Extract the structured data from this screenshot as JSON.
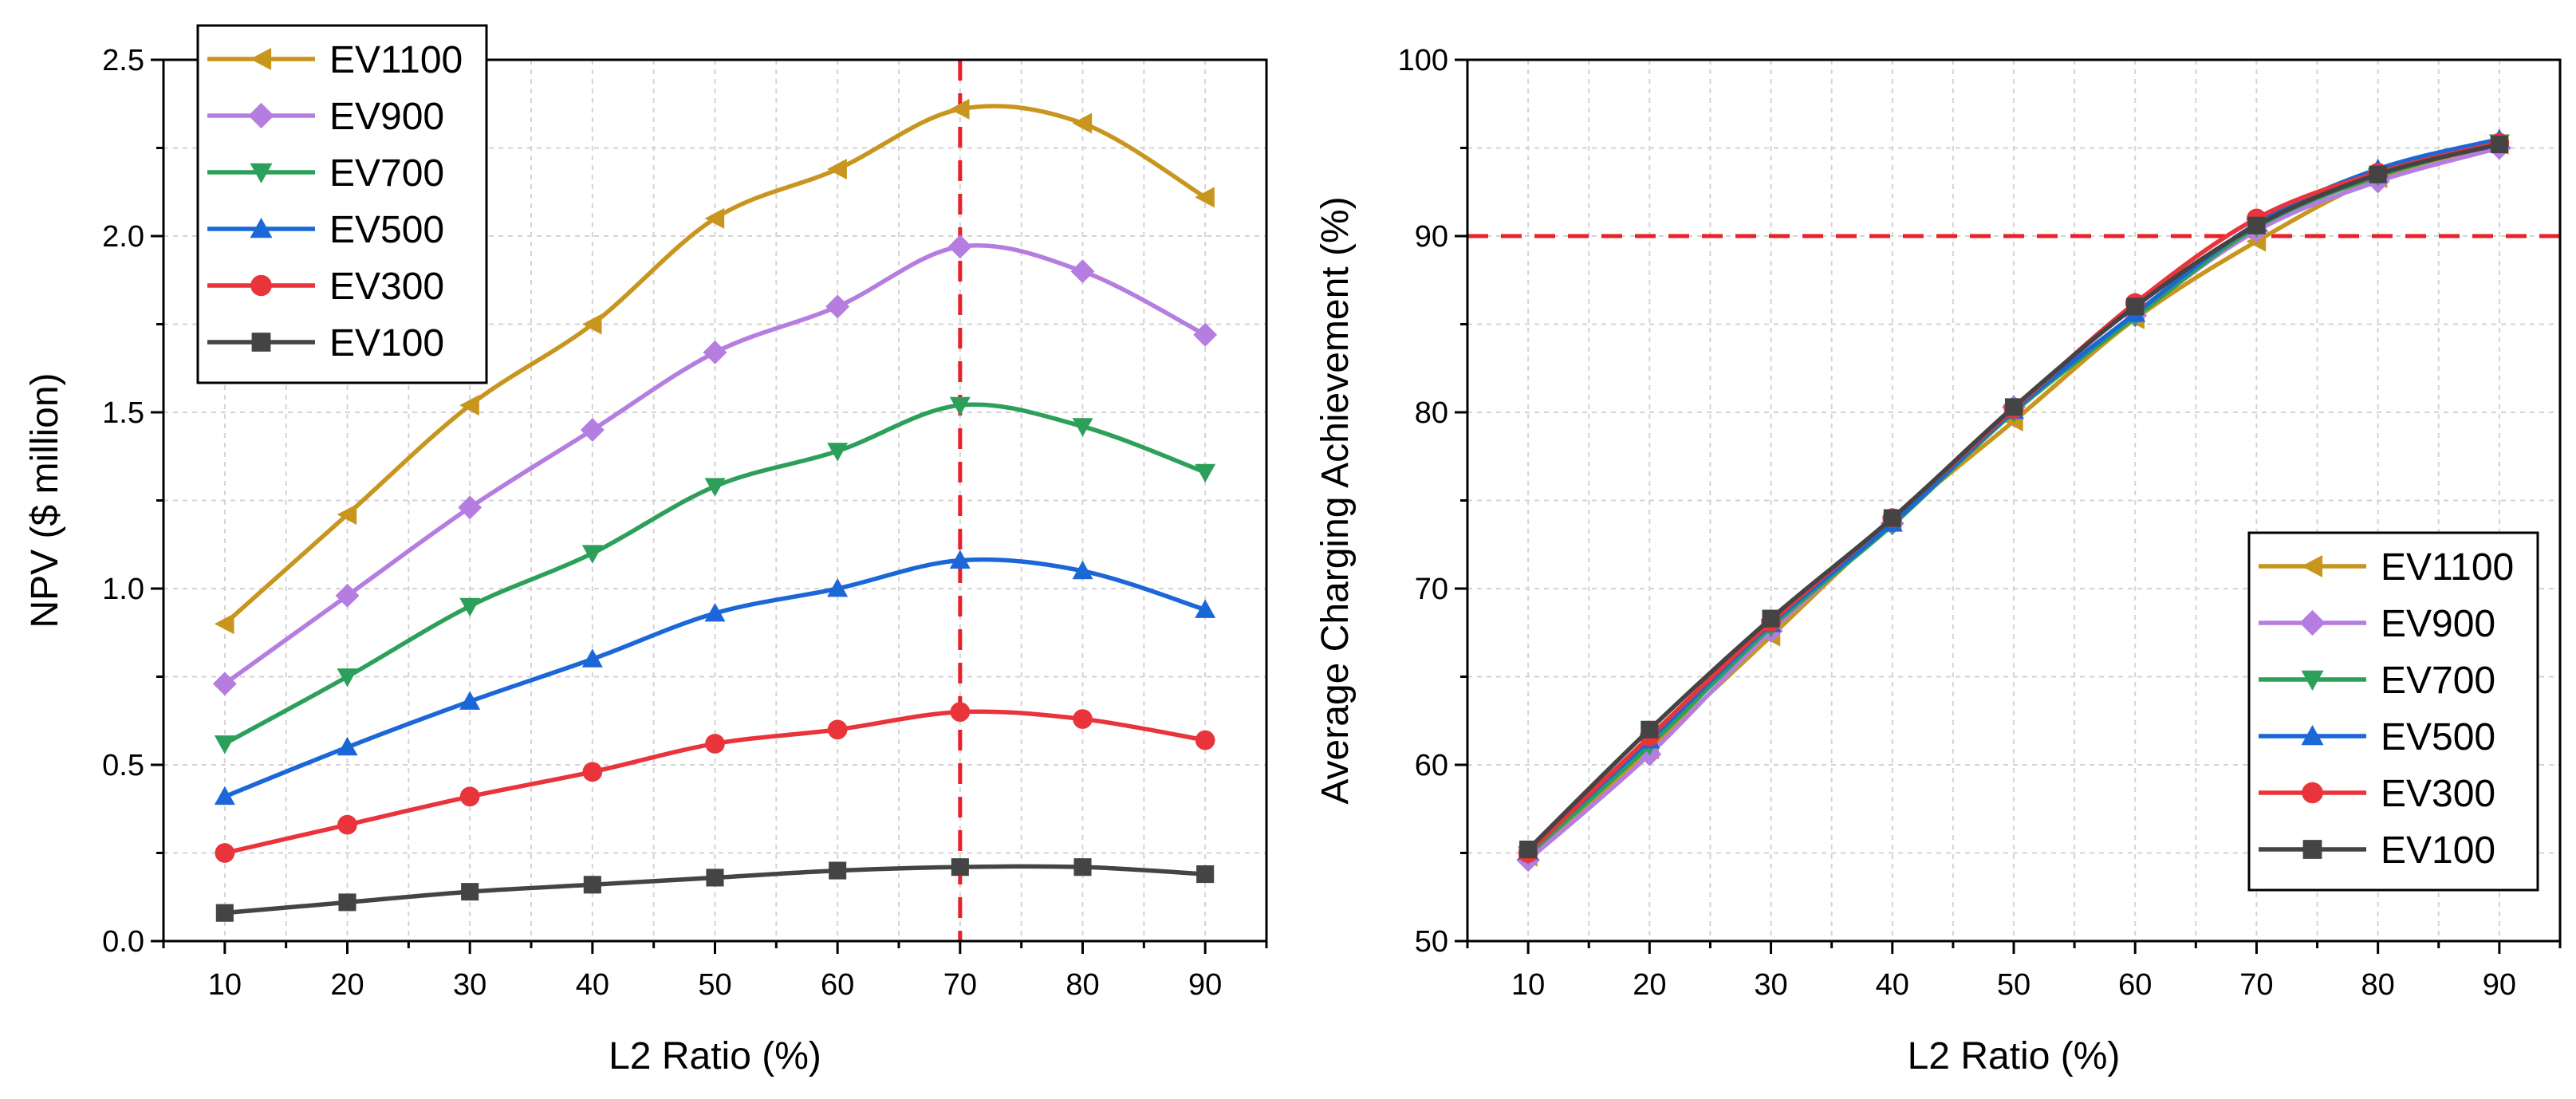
{
  "chart_data": [
    {
      "type": "line",
      "title": "",
      "xlabel": "L2 Ratio (%)",
      "ylabel": "NPV ($ million)",
      "x": [
        10,
        20,
        30,
        40,
        50,
        60,
        70,
        80,
        90
      ],
      "xlim": [
        5,
        95
      ],
      "ylim": [
        0.0,
        2.5
      ],
      "xticks": [
        10,
        20,
        30,
        40,
        50,
        60,
        70,
        80,
        90
      ],
      "yticks": [
        0.0,
        0.5,
        1.0,
        1.5,
        2.0,
        2.5
      ],
      "ytick_labels": [
        "0.0",
        "0.5",
        "1.0",
        "1.5",
        "2.0",
        "2.5"
      ],
      "grid": true,
      "legend_position": "top-left",
      "reference_line": {
        "orientation": "vertical",
        "value": 70,
        "color": "#e8202a",
        "style": "dashed"
      },
      "series": [
        {
          "name": "EV1100",
          "color": "#c8961e",
          "marker": "triangle-left",
          "values": [
            0.9,
            1.21,
            1.52,
            1.75,
            2.05,
            2.19,
            2.36,
            2.32,
            2.11
          ]
        },
        {
          "name": "EV900",
          "color": "#b57de0",
          "marker": "diamond",
          "values": [
            0.73,
            0.98,
            1.23,
            1.45,
            1.67,
            1.8,
            1.97,
            1.9,
            1.72
          ]
        },
        {
          "name": "EV700",
          "color": "#2ca05a",
          "marker": "triangle-down",
          "values": [
            0.56,
            0.75,
            0.95,
            1.1,
            1.29,
            1.39,
            1.52,
            1.46,
            1.33
          ]
        },
        {
          "name": "EV500",
          "color": "#1c67d8",
          "marker": "triangle-up",
          "values": [
            0.41,
            0.55,
            0.68,
            0.8,
            0.93,
            1.0,
            1.08,
            1.05,
            0.94
          ]
        },
        {
          "name": "EV300",
          "color": "#e8343a",
          "marker": "circle",
          "values": [
            0.25,
            0.33,
            0.41,
            0.48,
            0.56,
            0.6,
            0.65,
            0.63,
            0.57
          ]
        },
        {
          "name": "EV100",
          "color": "#444444",
          "marker": "square",
          "values": [
            0.08,
            0.11,
            0.14,
            0.16,
            0.18,
            0.2,
            0.21,
            0.21,
            0.19
          ]
        }
      ]
    },
    {
      "type": "line",
      "title": "",
      "xlabel": "L2 Ratio (%)",
      "ylabel": "Average Charging Achievement (%)",
      "x": [
        10,
        20,
        30,
        40,
        50,
        60,
        70,
        80,
        90
      ],
      "xlim": [
        5,
        95
      ],
      "ylim": [
        50,
        100
      ],
      "xticks": [
        10,
        20,
        30,
        40,
        50,
        60,
        70,
        80,
        90
      ],
      "yticks": [
        50,
        60,
        70,
        80,
        90,
        100
      ],
      "ytick_labels": [
        "50",
        "60",
        "70",
        "80",
        "90",
        "100"
      ],
      "grid": true,
      "legend_position": "bottom-right",
      "reference_line": {
        "orientation": "horizontal",
        "value": 90,
        "color": "#e8202a",
        "style": "dashed"
      },
      "series": [
        {
          "name": "EV1100",
          "color": "#c8961e",
          "marker": "triangle-left",
          "values": [
            54.8,
            60.9,
            67.3,
            73.8,
            79.5,
            85.3,
            89.7,
            93.3,
            95.2
          ]
        },
        {
          "name": "EV900",
          "color": "#b57de0",
          "marker": "diamond",
          "values": [
            54.6,
            60.6,
            67.6,
            73.7,
            80.3,
            85.5,
            90.3,
            93.1,
            95.0
          ]
        },
        {
          "name": "EV700",
          "color": "#2ca05a",
          "marker": "triangle-down",
          "values": [
            54.9,
            61.1,
            67.8,
            73.6,
            80.0,
            85.4,
            90.5,
            93.4,
            95.3
          ]
        },
        {
          "name": "EV500",
          "color": "#1c67d8",
          "marker": "triangle-up",
          "values": [
            55.1,
            61.4,
            68.0,
            73.7,
            80.1,
            85.6,
            90.7,
            93.8,
            95.5
          ]
        },
        {
          "name": "EV300",
          "color": "#e8343a",
          "marker": "circle",
          "values": [
            55.0,
            61.6,
            68.1,
            74.0,
            80.2,
            86.2,
            91.0,
            93.6,
            95.3
          ]
        },
        {
          "name": "EV100",
          "color": "#444444",
          "marker": "square",
          "values": [
            55.2,
            62.0,
            68.3,
            74.0,
            80.3,
            86.0,
            90.6,
            93.5,
            95.2
          ]
        }
      ]
    }
  ]
}
